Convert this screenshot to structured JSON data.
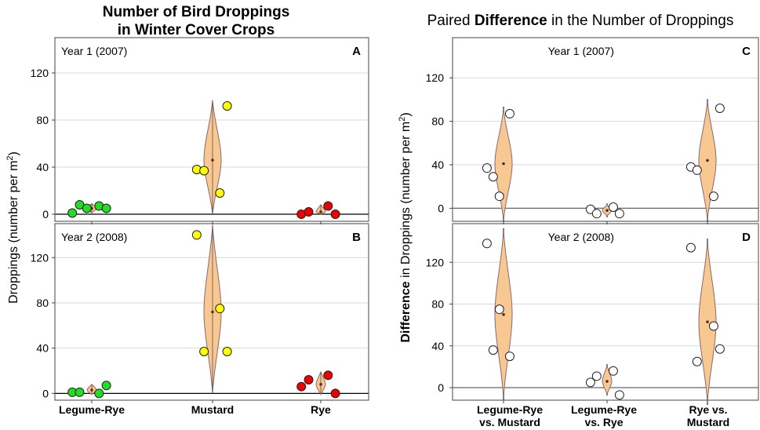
{
  "left_title": {
    "line1": "Number of Bird Droppings",
    "line2": "in Winter Cover Crops"
  },
  "right_title": {
    "pre": "Paired ",
    "bold": "Difference",
    "post": " in the Number of Droppings"
  },
  "left_ylabel": {
    "main": "Droppings (number per m",
    "sup": "2",
    "close": ")"
  },
  "right_ylabel": {
    "bold": "Difference",
    "pre": " in Droppings (number per m",
    "sup": "2",
    "close": ")"
  },
  "left_xticks": [
    "Legume-Rye",
    "Mustard",
    "Rye"
  ],
  "right_xticks": [
    {
      "line1": "Legume-Rye",
      "line2": "vs. Mustard"
    },
    {
      "line1": "Legume-Rye",
      "line2": "vs. Rye"
    },
    {
      "line1": "Rye vs.",
      "line2": "Mustard"
    }
  ],
  "colors": {
    "green": "#22dd22",
    "yellow": "#ffff00",
    "red": "#ee0000",
    "violin": "#f8c892",
    "violin_edge": "#8a6a6a",
    "grid": "#d8d8d8"
  },
  "chart_data": [
    {
      "id": "A",
      "type": "scatter",
      "title": "Year 1 (2007)",
      "panel_label": "A",
      "ylabel": "Droppings (number per m2)",
      "ylim": [
        -6,
        150
      ],
      "yticks": [
        0,
        40,
        80,
        120
      ],
      "categories": [
        "Legume-Rye",
        "Mustard",
        "Rye"
      ],
      "series": [
        {
          "name": "Legume-Rye",
          "color": "green",
          "x_offsets": [
            -0.16,
            -0.1,
            -0.04,
            0.06,
            0.12
          ],
          "values": [
            1,
            8,
            5,
            7,
            5
          ],
          "mean": 5,
          "vmin": 1,
          "vmax": 9
        },
        {
          "name": "Mustard",
          "color": "yellow",
          "x_offsets": [
            -0.13,
            -0.07,
            0.06,
            0.12
          ],
          "values": [
            38,
            37,
            18,
            92
          ],
          "mean": 46,
          "vmin": 0,
          "vmax": 97
        },
        {
          "name": "Rye",
          "color": "red",
          "x_offsets": [
            -0.16,
            -0.1,
            0.06,
            0.12
          ],
          "values": [
            0,
            2,
            7,
            0
          ],
          "mean": 2,
          "vmin": 0,
          "vmax": 8
        }
      ]
    },
    {
      "id": "B",
      "type": "scatter",
      "title": "Year 2 (2008)",
      "panel_label": "B",
      "ylabel": "Droppings (number per m2)",
      "ylim": [
        -6,
        150
      ],
      "yticks": [
        0,
        40,
        80,
        120
      ],
      "categories": [
        "Legume-Rye",
        "Mustard",
        "Rye"
      ],
      "series": [
        {
          "name": "Legume-Rye",
          "color": "green",
          "x_offsets": [
            -0.16,
            -0.1,
            0.06,
            0.12
          ],
          "values": [
            1,
            1,
            0,
            7
          ],
          "mean": 3,
          "vmin": -1,
          "vmax": 8
        },
        {
          "name": "Mustard",
          "color": "yellow",
          "x_offsets": [
            -0.13,
            -0.07,
            0.06,
            0.12
          ],
          "values": [
            140,
            37,
            75,
            37
          ],
          "mean": 72,
          "vmin": 0,
          "vmax": 149
        },
        {
          "name": "Rye",
          "color": "red",
          "x_offsets": [
            -0.16,
            -0.1,
            0.06,
            0.12
          ],
          "values": [
            6,
            12,
            16,
            0
          ],
          "mean": 8,
          "vmin": -1,
          "vmax": 19
        }
      ]
    },
    {
      "id": "C",
      "type": "scatter",
      "title": "Year 1 (2007)",
      "panel_label": "C",
      "ylabel": "Difference in Droppings (number per m2)",
      "ylim": [
        -12,
        157
      ],
      "yticks": [
        0,
        40,
        80,
        120
      ],
      "categories": [
        "Legume-Rye vs. Mustard",
        "Legume-Rye vs. Rye",
        "Rye vs. Mustard"
      ],
      "series": [
        {
          "name": "Legume-Rye vs. Mustard",
          "x_offsets": [
            -0.16,
            -0.1,
            -0.04,
            0.06
          ],
          "values": [
            37,
            29,
            11,
            87
          ],
          "mean": 41,
          "vmin": -11,
          "vmax": 92
        },
        {
          "name": "Legume-Rye vs. Rye",
          "x_offsets": [
            -0.16,
            -0.1,
            0.06,
            0.12
          ],
          "values": [
            -1,
            -5,
            1,
            -5
          ],
          "mean": -2,
          "vmin": -7,
          "vmax": 3
        },
        {
          "name": "Rye vs. Mustard",
          "x_offsets": [
            -0.16,
            -0.1,
            0.06,
            0.12
          ],
          "values": [
            38,
            35,
            11,
            92
          ],
          "mean": 44,
          "vmin": -11,
          "vmax": 99
        }
      ]
    },
    {
      "id": "D",
      "type": "scatter",
      "title": "Year 2 (2008)",
      "panel_label": "D",
      "ylabel": "Difference in Droppings (number per m2)",
      "ylim": [
        -12,
        157
      ],
      "yticks": [
        0,
        40,
        80,
        120
      ],
      "categories": [
        "Legume-Rye vs. Mustard",
        "Legume-Rye vs. Rye",
        "Rye vs. Mustard"
      ],
      "series": [
        {
          "name": "Legume-Rye vs. Mustard",
          "x_offsets": [
            -0.16,
            -0.1,
            -0.04,
            0.06
          ],
          "values": [
            138,
            36,
            75,
            30
          ],
          "mean": 70,
          "vmin": -10,
          "vmax": 151
        },
        {
          "name": "Legume-Rye vs. Rye",
          "x_offsets": [
            -0.16,
            -0.1,
            0.06,
            0.12
          ],
          "values": [
            5,
            11,
            16,
            -7
          ],
          "mean": 6,
          "vmin": -6,
          "vmax": 21
        },
        {
          "name": "Rye vs. Mustard",
          "x_offsets": [
            -0.16,
            -0.1,
            0.06,
            0.12
          ],
          "values": [
            134,
            25,
            59,
            37
          ],
          "mean": 63,
          "vmin": -15,
          "vmax": 141
        }
      ]
    }
  ]
}
